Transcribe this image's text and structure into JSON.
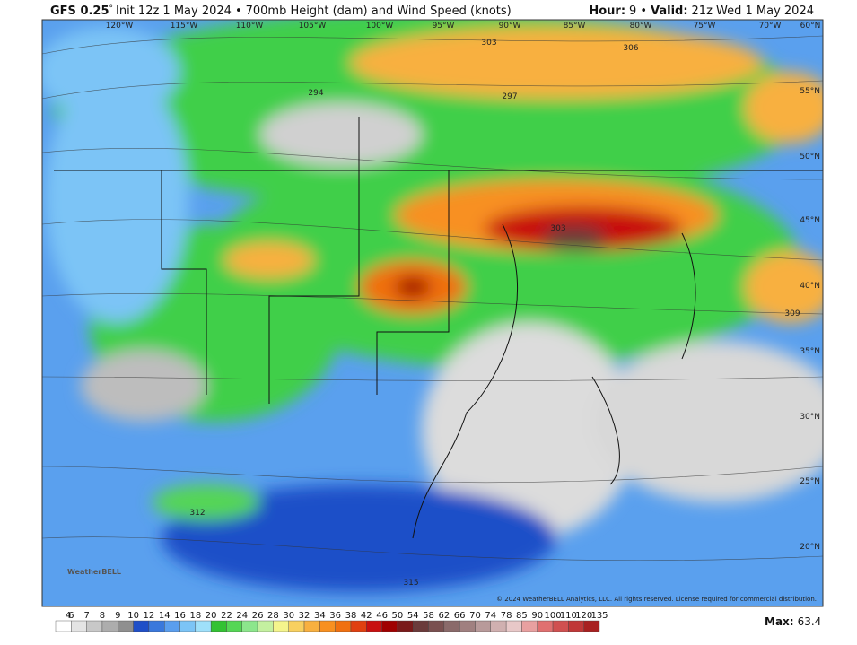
{
  "header": {
    "model": "GFS 0.25",
    "degree": "°",
    "init": "Init 12z 1 May 2024",
    "separator": "•",
    "product": "700mb Height (dam) and Wind Speed (knots)",
    "hour_label": "Hour:",
    "hour": "9",
    "valid_label": "Valid:",
    "valid": "21z Wed 1 May 2024"
  },
  "map": {
    "longitudes": [
      "120°W",
      "115°W",
      "110°W",
      "105°W",
      "100°W",
      "95°W",
      "90°W",
      "85°W",
      "80°W",
      "75°W",
      "70°W",
      "60°N"
    ],
    "latitudes": [
      "55°N",
      "50°N",
      "45°N",
      "40°N",
      "35°N",
      "30°N",
      "25°N",
      "20°N"
    ],
    "contour_labels": [
      "303",
      "306",
      "294",
      "297",
      "303",
      "309",
      "312",
      "315"
    ],
    "copyright": "© 2024 WeatherBELL Analytics, LLC. All rights reserved. License required for commercial distribution.",
    "logo": "WeatherBELL"
  },
  "colorbar": {
    "ticks": [
      4,
      6,
      7,
      8,
      9,
      10,
      12,
      14,
      16,
      18,
      20,
      22,
      24,
      26,
      28,
      30,
      32,
      34,
      36,
      38,
      42,
      46,
      50,
      54,
      58,
      62,
      66,
      70,
      74,
      78,
      85,
      90,
      100,
      110,
      120,
      135
    ],
    "colors": [
      "#ffffff",
      "#e4e4e4",
      "#c8c8c8",
      "#adadad",
      "#8f8f8f",
      "#1f4fc8",
      "#3a78dc",
      "#5a9eee",
      "#7cc4f6",
      "#9fe0fa",
      "#33c233",
      "#55d655",
      "#8ce68c",
      "#c4f0a0",
      "#f4f48c",
      "#f8d060",
      "#f8b040",
      "#f89020",
      "#f07010",
      "#e04010",
      "#c81010",
      "#a00000",
      "#7a1a1a",
      "#6b3b3b",
      "#7a5050",
      "#8a6a6a",
      "#a08080",
      "#b89a9a",
      "#d0b0b0",
      "#e8c8c8",
      "#e8a0a0",
      "#e07070",
      "#d05050",
      "#c03838",
      "#a82020"
    ]
  },
  "max": {
    "label": "Max:",
    "value": 63.4
  }
}
